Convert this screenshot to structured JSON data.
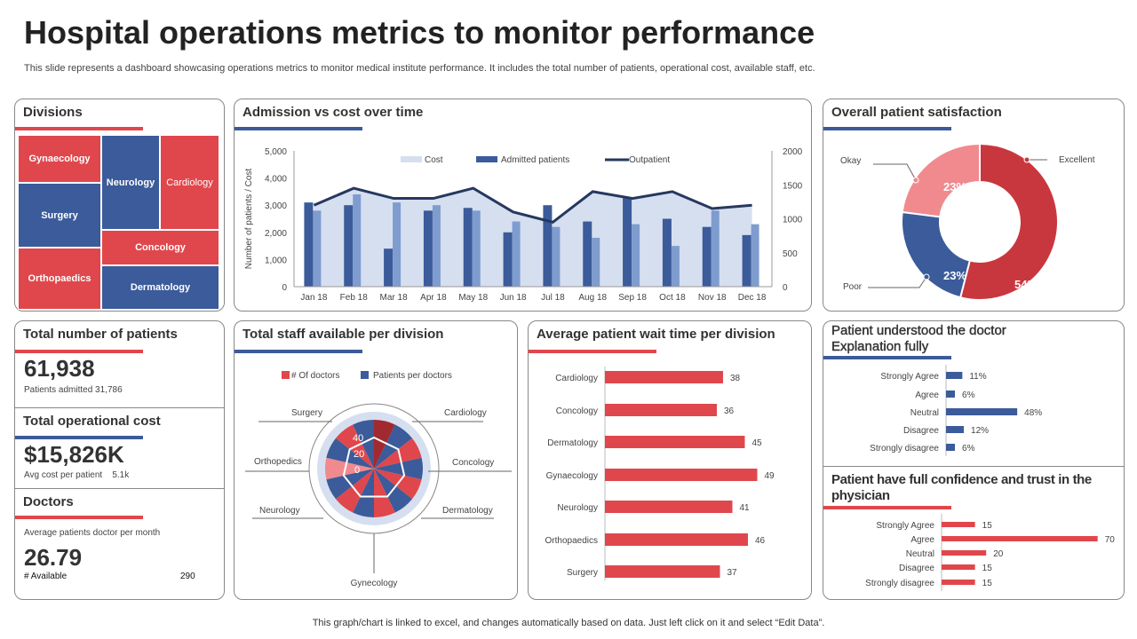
{
  "header": {
    "title": "Hospital operations metrics to monitor performance",
    "subtitle": "This slide represents a dashboard showcasing operations metrics to monitor medical institute performance. It includes the total number of patients, operational cost, available staff, etc."
  },
  "colors": {
    "red": "#e0474c",
    "blue": "#3b5b9a",
    "light_blue": "#7f9ccf",
    "area": "#d6dfef",
    "dark_red": "#c9373e",
    "pink": "#f08a8f"
  },
  "divisions": {
    "title": "Divisions",
    "cells": [
      {
        "label": "Gynaecology",
        "color": "red"
      },
      {
        "label": "Surgery",
        "color": "blue"
      },
      {
        "label": "Orthopaedics",
        "color": "red"
      },
      {
        "label": "Neurology",
        "color": "blue"
      },
      {
        "label": "Cardiology",
        "color": "red"
      },
      {
        "label": "Concology",
        "color": "red"
      },
      {
        "label": "Dermatology",
        "color": "blue"
      }
    ]
  },
  "admission": {
    "title": "Admission vs cost over time"
  },
  "satisfaction": {
    "title": "Overall patient satisfaction"
  },
  "patients": {
    "title": "Total number of patients",
    "value": "61,938",
    "sub_label": "Patients admitted",
    "sub_value": "31,786"
  },
  "cost": {
    "title": "Total operational cost",
    "value": "$15,826K",
    "sub_label": "Avg cost per patient",
    "sub_value": "5.1k"
  },
  "doctors": {
    "title": "Doctors",
    "sub_label": "Average patients doctor per month",
    "value": "26.79",
    "avail_label": "# Available",
    "avail_value": "290"
  },
  "staff": {
    "title": "Total staff available per division"
  },
  "wait": {
    "title": "Average patient wait time per division"
  },
  "understood": {
    "title": "Patient understood the doctor Explanation fully"
  },
  "confidence": {
    "title": "Patient have full confidence and trust in the physician"
  },
  "footer": "This graph/chart is linked to excel,  and changes automatically based on data. Just left click on it and select “Edit Data”.",
  "chart_data": [
    {
      "type": "bar",
      "id": "admission",
      "categories": [
        "Jan 18",
        "Feb 18",
        "Mar 18",
        "Apr 18",
        "May 18",
        "Jun 18",
        "Jul 18",
        "Aug 18",
        "Sep 18",
        "Oct 18",
        "Nov 18",
        "Dec 18"
      ],
      "ylabel": "Number of patients / Cost",
      "ylim": [
        0,
        5000
      ],
      "yticks": [
        "0",
        "1,000",
        "2,000",
        "3,000",
        "4,000",
        "5,000"
      ],
      "y2lim": [
        0,
        2000
      ],
      "y2ticks": [
        "0",
        "500",
        "1000",
        "1500",
        "2000"
      ],
      "legend": "top",
      "series": [
        {
          "name": "Cost",
          "type": "area",
          "axis": "left",
          "values": [
            3000,
            3650,
            3250,
            3250,
            3650,
            2750,
            2350,
            3500,
            3250,
            3500,
            2900,
            3000
          ]
        },
        {
          "name": "Admitted patients",
          "type": "bar",
          "axis": "left",
          "values": [
            3100,
            3000,
            1400,
            2800,
            2900,
            2000,
            3000,
            2400,
            3300,
            2500,
            2200,
            1900
          ]
        },
        {
          "type": "bar",
          "axis": "left",
          "values": [
            2800,
            3400,
            3100,
            3000,
            2800,
            2400,
            2200,
            1800,
            2300,
            1500,
            2800,
            2300
          ]
        },
        {
          "name": "Outpatient",
          "type": "line",
          "axis": "right",
          "values": [
            1200,
            1450,
            1300,
            1300,
            1450,
            1100,
            950,
            1400,
            1300,
            1400,
            1150,
            1200
          ]
        }
      ]
    },
    {
      "type": "pie",
      "id": "satisfaction",
      "slices": [
        {
          "label": "Excellent",
          "value": 54,
          "text": "54%"
        },
        {
          "label": "Poor",
          "value": 23,
          "text": "23%"
        },
        {
          "label": "Okay",
          "value": 23,
          "text": "23%"
        }
      ]
    },
    {
      "type": "radar",
      "id": "staff",
      "categories": [
        "Cardiology",
        "Concology",
        "Dermatology",
        "Gynecology",
        "Neurology",
        "Orthopedics",
        "Surgery"
      ],
      "legend": [
        "# Of doctors",
        "Patients  per  doctors"
      ],
      "rticks": [
        "0",
        "20",
        "40"
      ]
    },
    {
      "type": "bar",
      "id": "wait",
      "orientation": "horizontal",
      "categories": [
        "Cardiology",
        "Concology",
        "Dermatology",
        "Gynaecology",
        "Neurology",
        "Orthopaedics",
        "Surgery"
      ],
      "values": [
        38,
        36,
        45,
        49,
        41,
        46,
        37
      ]
    },
    {
      "type": "bar",
      "id": "understood",
      "orientation": "horizontal",
      "categories": [
        "Strongly Agree",
        "Agree",
        "Neutral",
        "Disagree",
        "Strongly disagree"
      ],
      "values": [
        11,
        6,
        48,
        12,
        6
      ],
      "labels": [
        "11%",
        "6%",
        "48%",
        "12%",
        "6%"
      ]
    },
    {
      "type": "bar",
      "id": "confidence",
      "orientation": "horizontal",
      "categories": [
        "Strongly Agree",
        "Agree",
        "Neutral",
        "Disagree",
        "Strongly disagree"
      ],
      "values": [
        15,
        70,
        20,
        15,
        15
      ]
    }
  ]
}
